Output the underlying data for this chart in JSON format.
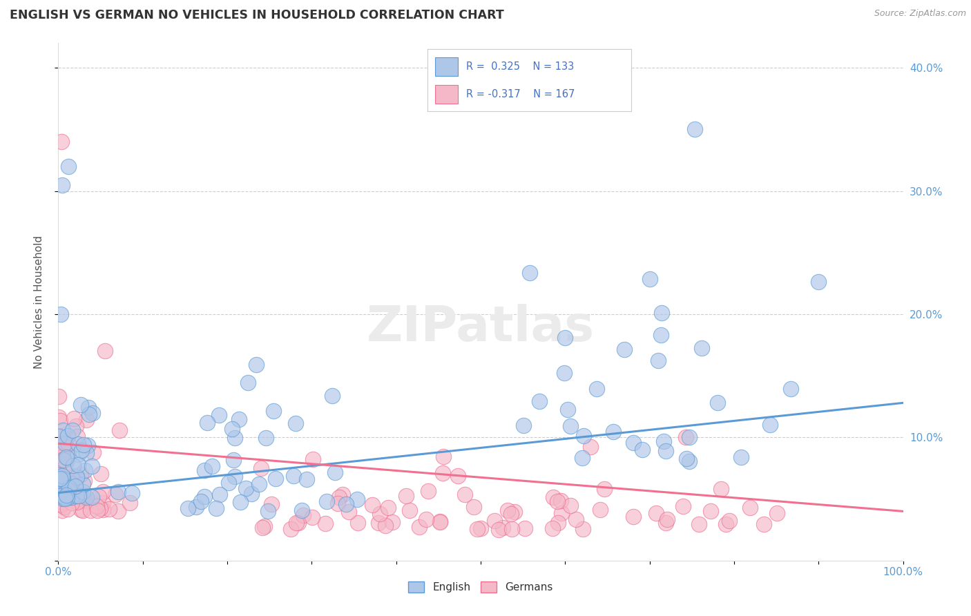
{
  "title": "ENGLISH VS GERMAN NO VEHICLES IN HOUSEHOLD CORRELATION CHART",
  "source": "Source: ZipAtlas.com",
  "ylabel": "No Vehicles in Household",
  "xlim": [
    0.0,
    1.0
  ],
  "ylim": [
    0.0,
    0.42
  ],
  "xticks": [
    0.0,
    0.1,
    0.2,
    0.3,
    0.4,
    0.5,
    0.6,
    0.7,
    0.8,
    0.9,
    1.0
  ],
  "yticks": [
    0.0,
    0.1,
    0.2,
    0.3,
    0.4
  ],
  "xtick_labels": [
    "0.0%",
    "",
    "",
    "",
    "",
    "",
    "",
    "",
    "",
    "",
    "100.0%"
  ],
  "ytick_labels_right": [
    "",
    "10.0%",
    "20.0%",
    "30.0%",
    "40.0%"
  ],
  "english_R": 0.325,
  "english_N": 133,
  "german_R": -0.317,
  "german_N": 167,
  "english_color": "#aec6e8",
  "german_color": "#f4b8c8",
  "english_edge_color": "#5b9bd5",
  "german_edge_color": "#f07090",
  "english_line_color": "#5b9bd5",
  "german_line_color": "#f07090",
  "legend_text_color": "#4472c4",
  "background_color": "#ffffff",
  "grid_color": "#c8c8c8",
  "watermark": "ZIPatlas",
  "eng_slope": 0.073,
  "eng_intercept": 0.055,
  "ger_slope": -0.055,
  "ger_intercept": 0.095
}
